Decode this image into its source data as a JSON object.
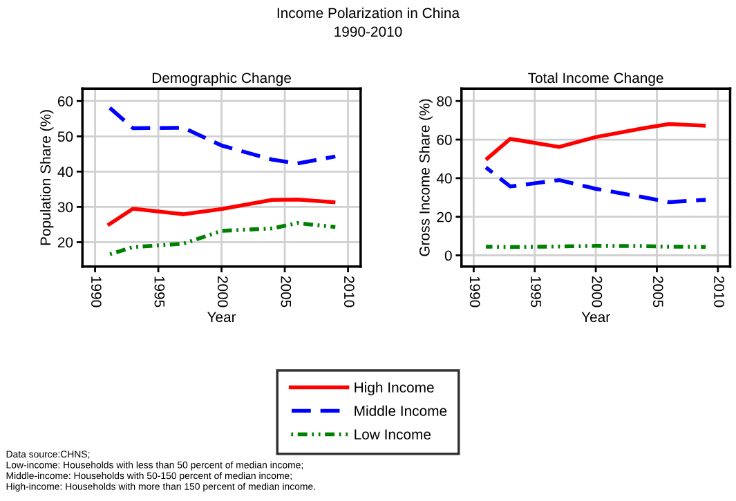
{
  "chart_data": [
    {
      "type": "line",
      "title": "Income Polarization in China\n1990-2010",
      "subtitle": "Demographic Change",
      "xlabel": "Year",
      "ylabel": "Population Share (%)",
      "x": [
        1991,
        1993,
        1997,
        2000,
        2004,
        2006,
        2009
      ],
      "series": [
        {
          "name": "High Income",
          "color": "#ff0000",
          "line_style": "solid",
          "values": [
            24.8,
            29.5,
            27.9,
            29.4,
            32.0,
            32.1,
            31.3
          ]
        },
        {
          "name": "Middle Income",
          "color": "#0000ff",
          "line_style": "dashed",
          "values": [
            58.6,
            52.3,
            52.4,
            47.4,
            43.4,
            42.3,
            44.3
          ]
        },
        {
          "name": "Low Income",
          "color": "#008000",
          "line_style": "dashdot",
          "values": [
            16.4,
            18.6,
            19.6,
            23.2,
            23.9,
            25.4,
            24.3
          ]
        }
      ],
      "xlim": [
        1989,
        2011
      ],
      "xticks": [
        1990,
        1995,
        2000,
        2005,
        2010
      ],
      "ylim": [
        13.1,
        63.5
      ],
      "yticks": [
        20,
        30,
        40,
        50,
        60
      ],
      "grid": true,
      "legend": "bottom",
      "annotations": [
        "Data source:CHNS;",
        "Low-income: Households with less than 50 percent of median income;",
        "Middle-income: Households with 50-150 percent of median income;",
        "High-income: Households with more than 150 percent of median income."
      ]
    },
    {
      "type": "line",
      "subtitle": "Total Income Change",
      "xlabel": "Year",
      "ylabel": "Gross Income Share (%)",
      "x": [
        1991,
        1993,
        1997,
        2000,
        2004,
        2006,
        2009
      ],
      "series": [
        {
          "color": "#ff0000",
          "line_style": "solid",
          "values": [
            49.6,
            60.4,
            56.2,
            61.3,
            66.0,
            68.1,
            67.2
          ]
        },
        {
          "color": "#0000ff",
          "line_style": "dashed",
          "values": [
            45.6,
            35.7,
            39.0,
            34.5,
            30.0,
            27.6,
            28.8
          ]
        },
        {
          "color": "#008000",
          "line_style": "dashdot",
          "values": [
            4.5,
            4.3,
            4.6,
            4.9,
            4.8,
            4.5,
            4.4
          ]
        }
      ],
      "xlim": [
        1989,
        2011
      ],
      "xticks": [
        1990,
        1995,
        2000,
        2005,
        2010
      ],
      "ylim": [
        -5.8,
        86.4
      ],
      "yticks": [
        0,
        20,
        40,
        60,
        80
      ],
      "grid": true
    }
  ]
}
